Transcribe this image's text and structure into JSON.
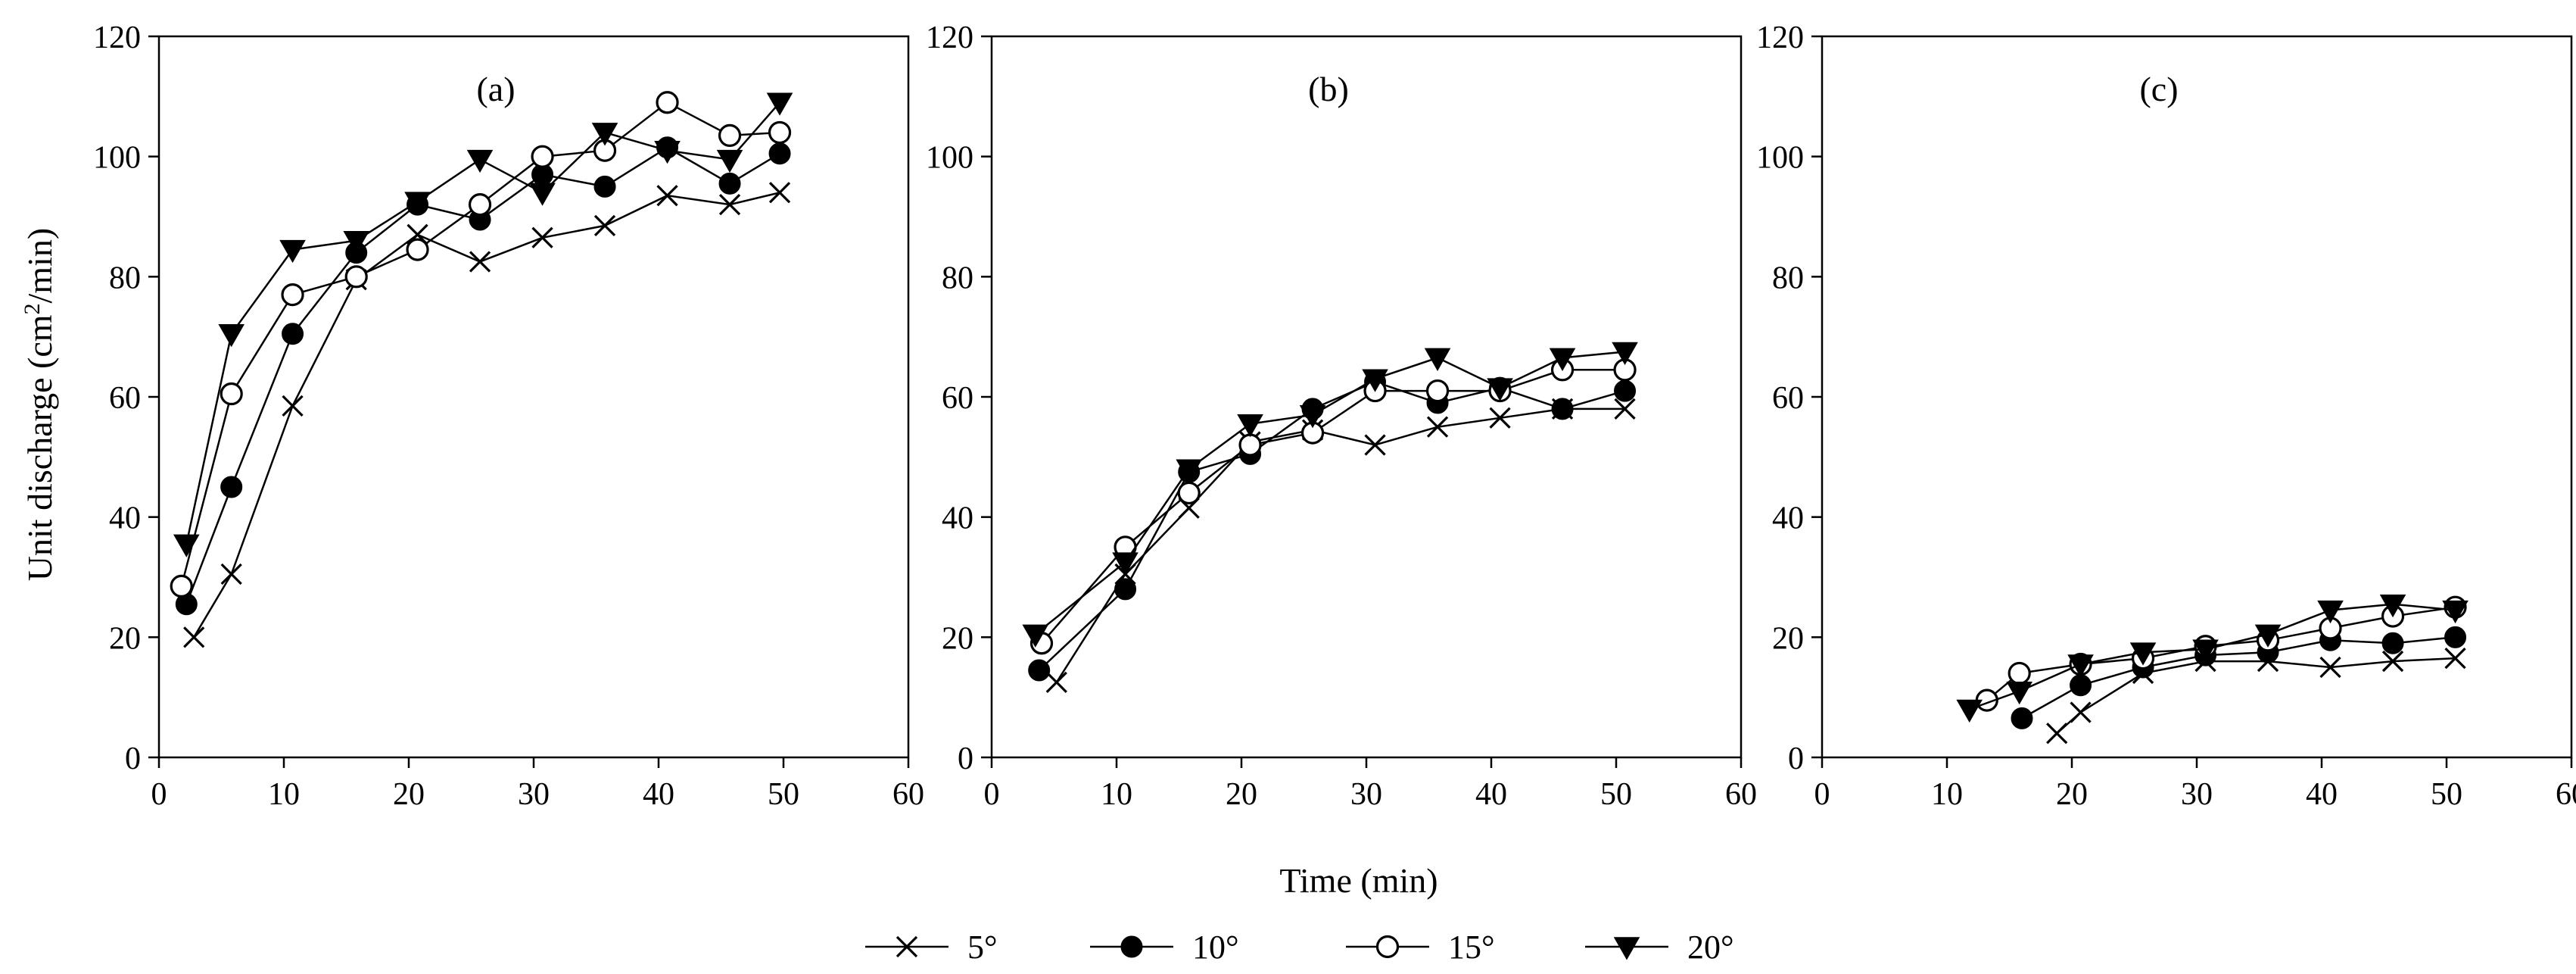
{
  "chart_data": {
    "type": "line",
    "ylabel_main": "Unit discharge (cm",
    "ylabel_sup": "2",
    "ylabel_tail": "/min)",
    "xlabel": "Time (min)",
    "xlim": [
      0,
      60
    ],
    "ylim": [
      0,
      120
    ],
    "xticks": [
      0,
      10,
      20,
      30,
      40,
      50,
      60
    ],
    "yticks": [
      0,
      20,
      40,
      60,
      80,
      100,
      120
    ],
    "legend": [
      "5°",
      "10°",
      "15°",
      "20°"
    ],
    "marker_styles": [
      "cross",
      "filled-circle",
      "open-circle",
      "filled-triangle-down"
    ],
    "panels": [
      {
        "label": "(a)",
        "series": [
          {
            "name": "5°",
            "points": [
              [
                2.8,
                20
              ],
              [
                5.8,
                30.5
              ],
              [
                10.7,
                58.5
              ],
              [
                15.8,
                79.5
              ],
              [
                20.7,
                87
              ],
              [
                25.7,
                82.5
              ],
              [
                30.7,
                86.5
              ],
              [
                35.7,
                88.5
              ],
              [
                40.7,
                93.5
              ],
              [
                45.7,
                92
              ],
              [
                49.7,
                94
              ]
            ]
          },
          {
            "name": "10°",
            "points": [
              [
                2.2,
                25.5
              ],
              [
                5.8,
                45
              ],
              [
                10.7,
                70.5
              ],
              [
                15.8,
                84
              ],
              [
                20.7,
                92
              ],
              [
                25.7,
                89.5
              ],
              [
                30.7,
                97
              ],
              [
                35.7,
                95
              ],
              [
                40.7,
                101.5
              ],
              [
                45.7,
                95.5
              ],
              [
                49.7,
                100.5
              ]
            ]
          },
          {
            "name": "15°",
            "points": [
              [
                1.8,
                28.5
              ],
              [
                5.8,
                60.5
              ],
              [
                10.7,
                77
              ],
              [
                15.8,
                80
              ],
              [
                20.7,
                84.5
              ],
              [
                25.7,
                92
              ],
              [
                30.7,
                100
              ],
              [
                35.7,
                101
              ],
              [
                40.7,
                109
              ],
              [
                45.7,
                103.5
              ],
              [
                49.7,
                104
              ]
            ]
          },
          {
            "name": "20°",
            "points": [
              [
                2.2,
                35.5
              ],
              [
                5.8,
                70.5
              ],
              [
                10.7,
                84.5
              ],
              [
                15.8,
                86
              ],
              [
                20.7,
                92.5
              ],
              [
                25.7,
                99.5
              ],
              [
                30.7,
                94
              ],
              [
                35.7,
                104
              ],
              [
                40.7,
                101
              ],
              [
                45.7,
                99.5
              ],
              [
                49.7,
                109
              ]
            ]
          }
        ]
      },
      {
        "label": "(b)",
        "series": [
          {
            "name": "5°",
            "points": [
              [
                5.2,
                12.5
              ],
              [
                10.7,
                30.5
              ],
              [
                15.8,
                41.5
              ],
              [
                20.7,
                52.5
              ],
              [
                25.7,
                54.5
              ],
              [
                30.7,
                52
              ],
              [
                35.7,
                55
              ],
              [
                40.7,
                56.5
              ],
              [
                45.7,
                58
              ],
              [
                50.7,
                58
              ]
            ]
          },
          {
            "name": "10°",
            "points": [
              [
                3.8,
                14.5
              ],
              [
                10.7,
                28
              ],
              [
                15.8,
                47.5
              ],
              [
                20.7,
                50.5
              ],
              [
                25.7,
                58
              ],
              [
                30.7,
                62.5
              ],
              [
                35.7,
                59
              ],
              [
                40.7,
                61.5
              ],
              [
                45.7,
                58
              ],
              [
                50.7,
                61
              ]
            ]
          },
          {
            "name": "15°",
            "points": [
              [
                4.0,
                19
              ],
              [
                10.7,
                35
              ],
              [
                15.8,
                44
              ],
              [
                20.7,
                52
              ],
              [
                25.7,
                54
              ],
              [
                30.7,
                61
              ],
              [
                35.7,
                61
              ],
              [
                40.7,
                61
              ],
              [
                45.7,
                64.5
              ],
              [
                50.7,
                64.5
              ]
            ]
          },
          {
            "name": "20°",
            "points": [
              [
                3.5,
                20.5
              ],
              [
                10.7,
                32.5
              ],
              [
                15.8,
                48
              ],
              [
                20.7,
                55.5
              ],
              [
                25.7,
                57
              ],
              [
                30.7,
                63
              ],
              [
                35.7,
                66.5
              ],
              [
                40.7,
                61.5
              ],
              [
                45.7,
                66.5
              ],
              [
                50.7,
                67.5
              ]
            ]
          }
        ]
      },
      {
        "label": "(c)",
        "series": [
          {
            "name": "5°",
            "points": [
              [
                18.8,
                4
              ],
              [
                20.7,
                7.5
              ],
              [
                25.7,
                14
              ],
              [
                30.7,
                16
              ],
              [
                35.7,
                16
              ],
              [
                40.7,
                15
              ],
              [
                45.7,
                16
              ],
              [
                50.7,
                16.5
              ]
            ]
          },
          {
            "name": "10°",
            "points": [
              [
                16.0,
                6.5
              ],
              [
                20.7,
                12
              ],
              [
                25.7,
                15
              ],
              [
                30.7,
                17
              ],
              [
                35.7,
                17.5
              ],
              [
                40.7,
                19.5
              ],
              [
                45.7,
                19
              ],
              [
                50.7,
                20
              ]
            ]
          },
          {
            "name": "15°",
            "points": [
              [
                13.2,
                9.5
              ],
              [
                15.8,
                14
              ],
              [
                20.7,
                15.5
              ],
              [
                25.7,
                16.5
              ],
              [
                30.7,
                18.5
              ],
              [
                35.7,
                19.5
              ],
              [
                40.7,
                21.5
              ],
              [
                45.7,
                23.5
              ],
              [
                50.7,
                25
              ]
            ]
          },
          {
            "name": "20°",
            "points": [
              [
                11.8,
                8
              ],
              [
                15.8,
                11
              ],
              [
                20.7,
                15.5
              ],
              [
                25.7,
                17.5
              ],
              [
                30.7,
                18
              ],
              [
                35.7,
                20.5
              ],
              [
                40.7,
                24.5
              ],
              [
                45.7,
                25.5
              ],
              [
                50.7,
                24.5
              ]
            ]
          }
        ]
      }
    ]
  }
}
